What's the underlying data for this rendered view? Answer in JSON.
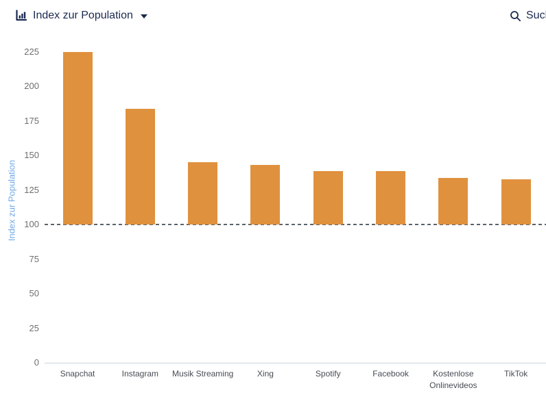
{
  "header": {
    "metric_label": "Index zur Population",
    "search_label": "Suchen"
  },
  "icons": {
    "metric": "bar-chart-icon",
    "dropdown": "chevron-down-icon",
    "search": "search-icon"
  },
  "colors": {
    "bar": "#e0913e",
    "navy": "#1a2950",
    "axis_title_blue": "#74aae6",
    "tick_gray": "#6e6e6e",
    "category_gray": "#474b54",
    "baseline_gray": "#cdd5de",
    "dashed_line": "#5a626b"
  },
  "chart_data": {
    "type": "bar",
    "title": "Index zur Population",
    "ylabel": "Index zur Population",
    "xlabel": "",
    "categories": [
      "Snapchat",
      "Instagram",
      "Musik Streaming",
      "Xing",
      "Spotify",
      "Facebook",
      "Kostenlose Onlinevideos",
      "TikTok"
    ],
    "values": [
      225,
      184,
      145,
      143,
      139,
      139,
      134,
      133
    ],
    "ylim": [
      0,
      225
    ],
    "yticks": [
      0,
      25,
      50,
      75,
      100,
      125,
      150,
      175,
      200,
      225
    ],
    "bar_base": 100,
    "reference_line": 100,
    "grid": false,
    "legend": false
  }
}
